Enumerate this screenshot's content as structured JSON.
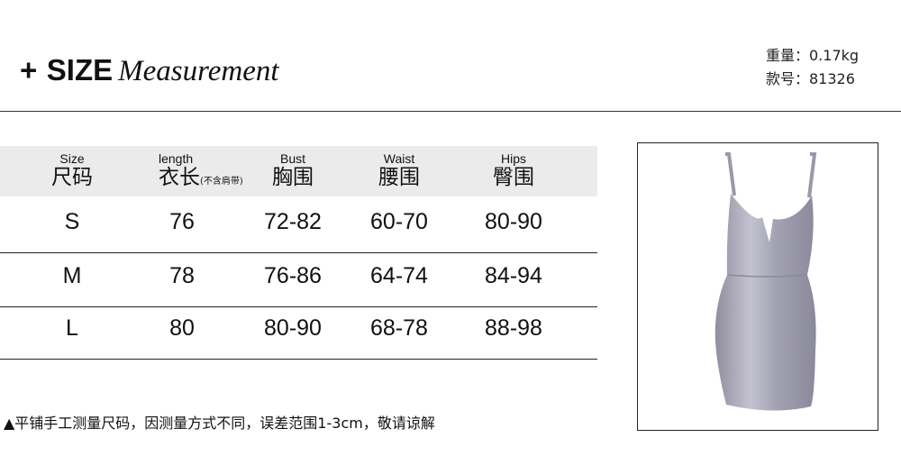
{
  "header": {
    "plus": "+",
    "size": "SIZE",
    "measurement": "Measurement"
  },
  "meta": {
    "weight": "重量：0.17kg",
    "item_no": "款号：81326"
  },
  "table": {
    "columns": [
      {
        "en": "Size",
        "zh": "尺码",
        "note": ""
      },
      {
        "en": "length",
        "zh": "衣长",
        "note": "(不含肩带)"
      },
      {
        "en": "Bust",
        "zh": "胸围",
        "note": ""
      },
      {
        "en": "Waist",
        "zh": "腰围",
        "note": ""
      },
      {
        "en": "Hips",
        "zh": "臀围",
        "note": ""
      }
    ],
    "rows": [
      [
        "S",
        "76",
        "72-82",
        "60-70",
        "80-90"
      ],
      [
        "M",
        "78",
        "76-86",
        "64-74",
        "84-94"
      ],
      [
        "L",
        "80",
        "80-90",
        "68-78",
        "88-98"
      ]
    ]
  },
  "note": "▲平铺手工测量尺码，因测量方式不同，误差范围1-3cm，敬请谅解",
  "photo": {
    "icon": "dress-image",
    "color": "#a9a8b8"
  }
}
